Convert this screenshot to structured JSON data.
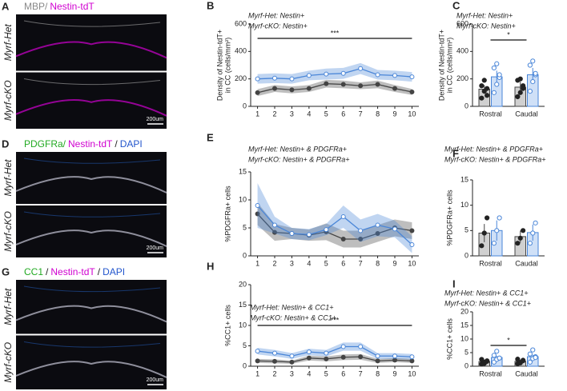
{
  "images": [
    {
      "panel": "A",
      "title": [
        "MBP/",
        "Nestin-tdT"
      ],
      "title_colors": [
        "#888888",
        "#d000d0"
      ],
      "rows": [
        "Myrf-Het",
        "Myrf-cKO"
      ],
      "scale": "200um"
    },
    {
      "panel": "D",
      "title": [
        "PDGFRa/",
        "Nestin-tdT",
        "/",
        "DAPI"
      ],
      "title_colors": [
        "#22aa22",
        "#d000d0",
        "#222222",
        "#2255cc"
      ],
      "rows": [
        "Myrf-Het",
        "Myrf-cKO"
      ],
      "scale": "200um"
    },
    {
      "panel": "G",
      "title": [
        "CC1",
        "/",
        "Nestin-tdT",
        "/",
        "DAPI"
      ],
      "title_colors": [
        "#22aa22",
        "#222222",
        "#d000d0",
        "#222222",
        "#2255cc"
      ],
      "rows": [
        "Myrf-Het",
        "Myrf-cKO"
      ],
      "scale": "200um"
    }
  ],
  "chart_data": [
    {
      "type": "line",
      "panel": "B",
      "ylabel": [
        "Density of Nestin-tdT+",
        "in CC (cells/mm²)"
      ],
      "annotation": "***",
      "x": [
        1,
        2,
        3,
        4,
        5,
        6,
        7,
        8,
        9,
        10
      ],
      "xlim": [
        0.6,
        10.4
      ],
      "xticks": [
        1,
        2,
        3,
        4,
        5,
        6,
        7,
        8,
        9,
        10
      ],
      "ylim": [
        0,
        600
      ],
      "yticks": [
        0,
        200,
        400,
        600
      ],
      "series": [
        {
          "name": "Myrf-Het: Nestin+",
          "color": "#444444",
          "values": [
            100,
            130,
            120,
            130,
            165,
            160,
            150,
            160,
            130,
            105
          ],
          "errors": [
            25,
            25,
            25,
            25,
            28,
            28,
            25,
            28,
            25,
            22
          ]
        },
        {
          "name": "Myrf-cKO: Nestin+",
          "color": "#4a86d8",
          "values": [
            200,
            205,
            200,
            225,
            235,
            240,
            275,
            230,
            225,
            215
          ],
          "errors": [
            35,
            35,
            35,
            35,
            40,
            40,
            40,
            35,
            35,
            35
          ]
        }
      ]
    },
    {
      "type": "bar",
      "panel": "C",
      "ylabel": [
        "Density of Nestin-tdT+",
        "in CC (cells/mm²)"
      ],
      "annotation": "*",
      "categories": [
        "Rostral",
        "Caudal"
      ],
      "ylim": [
        0,
        600
      ],
      "yticks": [
        0,
        200,
        400,
        600
      ],
      "series": [
        {
          "name": "Myrf-Het: Nestin+",
          "color": "#444444",
          "values": [
            125,
            140
          ],
          "errors": [
            30,
            40
          ],
          "points": [
            [
              60,
              110,
              130,
              150,
              190,
              80
            ],
            [
              70,
              100,
              150,
              190,
              200,
              130
            ]
          ]
        },
        {
          "name": "Myrf-cKO: Nestin+",
          "color": "#4a86d8",
          "values": [
            215,
            230
          ],
          "errors": [
            45,
            50
          ],
          "points": [
            [
              100,
              160,
              210,
              280,
              310,
              230
            ],
            [
              110,
              180,
              230,
              300,
              330,
              240
            ]
          ]
        }
      ]
    },
    {
      "type": "line",
      "panel": "E",
      "ylabel": [
        "%PDGFRa+ cells"
      ],
      "x": [
        1,
        2,
        3,
        4,
        5,
        6,
        7,
        8,
        9,
        10
      ],
      "xlim": [
        0.6,
        10.4
      ],
      "xticks": [
        1,
        2,
        3,
        4,
        5,
        6,
        7,
        8,
        9,
        10
      ],
      "ylim": [
        0,
        15
      ],
      "yticks": [
        0,
        5,
        10,
        15
      ],
      "series": [
        {
          "name": "Myrf-Het: Nestin+ & PDGFRa+",
          "color": "#444444",
          "values": [
            7.5,
            4.2,
            4,
            3.7,
            4.3,
            3,
            3,
            4,
            5,
            4.5
          ],
          "errors": [
            2,
            1.5,
            1,
            1,
            1.5,
            1.5,
            1.5,
            1.5,
            1.5,
            1.5
          ]
        },
        {
          "name": "Myrf-cKO: Nestin+ & PDGFRa+",
          "color": "#4a86d8",
          "values": [
            9,
            5.5,
            4,
            3.8,
            4.7,
            7,
            4.5,
            5.5,
            4.8,
            2
          ],
          "errors": [
            4,
            1.5,
            1,
            1,
            1,
            2,
            2,
            2,
            1.5,
            1.5
          ]
        }
      ]
    },
    {
      "type": "bar",
      "panel": "F",
      "ylabel": [
        "%PDGFRa+ cells"
      ],
      "categories": [
        "Rostral",
        "Caudal"
      ],
      "ylim": [
        0,
        15
      ],
      "yticks": [
        0,
        5,
        10,
        15
      ],
      "series": [
        {
          "name": "Myrf-Het: Nestin+ & PDGFRa+",
          "color": "#444444",
          "values": [
            4.5,
            3.8
          ],
          "errors": [
            1.8,
            1.2
          ],
          "points": [
            [
              2,
              4.5,
              7.5
            ],
            [
              2.5,
              3.5,
              5
            ]
          ]
        },
        {
          "name": "Myrf-cKO: Nestin+ & PDGFRa+",
          "color": "#4a86d8",
          "values": [
            5,
            4.6
          ],
          "errors": [
            2,
            1.6
          ],
          "points": [
            [
              2.5,
              5,
              7.5
            ],
            [
              2.5,
              4.5,
              6.5
            ]
          ]
        }
      ]
    },
    {
      "type": "line",
      "panel": "H",
      "ylabel": [
        "%CC1+ cells"
      ],
      "annotation": "***",
      "x": [
        1,
        2,
        3,
        4,
        5,
        6,
        7,
        8,
        9,
        10
      ],
      "xlim": [
        0.6,
        10.4
      ],
      "xticks": [
        1,
        2,
        3,
        4,
        5,
        6,
        7,
        8,
        9,
        10
      ],
      "ylim": [
        0,
        20
      ],
      "yticks": [
        0,
        5,
        10,
        15,
        20
      ],
      "series": [
        {
          "name": "Myrf-Het: Nestin+ & CC1+",
          "color": "#444444",
          "values": [
            1.3,
            1.2,
            1.0,
            2,
            1.8,
            2.2,
            2.3,
            1.3,
            1.5,
            1.3
          ],
          "errors": [
            0.5,
            0.5,
            0.4,
            0.6,
            0.6,
            0.7,
            0.7,
            0.5,
            0.5,
            0.5
          ]
        },
        {
          "name": "Myrf-cKO: Nestin+ & CC1+",
          "color": "#4a86d8",
          "values": [
            3.7,
            3.2,
            2.5,
            3.5,
            3.2,
            4.8,
            4.8,
            2.5,
            2.5,
            2.3
          ],
          "errors": [
            0.8,
            0.8,
            0.7,
            0.8,
            0.8,
            1,
            1,
            0.7,
            0.7,
            0.7
          ]
        }
      ]
    },
    {
      "type": "bar",
      "panel": "I",
      "ylabel": [
        "%CC1+ cells"
      ],
      "annotation": "*",
      "categories": [
        "Rostral",
        "Caudal"
      ],
      "ylim": [
        0,
        20
      ],
      "yticks": [
        0,
        5,
        10,
        15,
        20
      ],
      "series": [
        {
          "name": "Myrf-Het: Nestin+ & CC1+",
          "color": "#444444",
          "values": [
            1.7,
            1.8
          ],
          "errors": [
            0.5,
            0.5
          ],
          "points": [
            [
              0.8,
              1.5,
              2,
              2.5,
              1,
              1.8
            ],
            [
              0.9,
              1.4,
              2.2,
              2.6,
              1.2,
              2
            ]
          ]
        },
        {
          "name": "Myrf-cKO: Nestin+ & CC1+",
          "color": "#4a86d8",
          "values": [
            3.2,
            3.5
          ],
          "errors": [
            0.6,
            0.7
          ],
          "points": [
            [
              1.5,
              2.5,
              3,
              4,
              5.5,
              3
            ],
            [
              1.5,
              2.8,
              3.5,
              4.5,
              6,
              3.2
            ]
          ]
        }
      ]
    }
  ]
}
